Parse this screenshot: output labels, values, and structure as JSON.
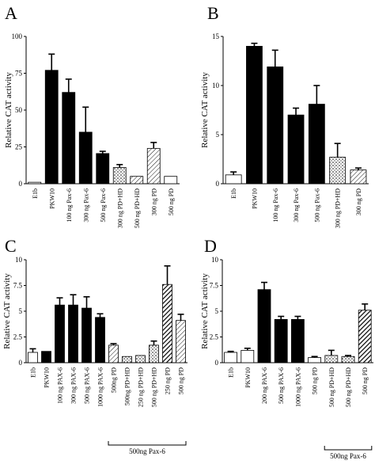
{
  "figure": {
    "panels": [
      "A",
      "B",
      "C",
      "D"
    ]
  },
  "chart_data": [
    {
      "panel": "A",
      "type": "bar",
      "ylabel": "Relative CAT activity",
      "ylim": [
        0,
        100
      ],
      "yticks": [
        0,
        25,
        50,
        75,
        100
      ],
      "categories": [
        "E1b",
        "PKW10",
        "100 ng Pax-6",
        "300 ng Pax-6",
        "500 ng Pax-6",
        "300 ng PD+HD",
        "500 ng PD+HD",
        "300 ng PD",
        "500 ng PD"
      ],
      "values": [
        1,
        77,
        62,
        35,
        20.5,
        11,
        5,
        24,
        5
      ],
      "errors": [
        0,
        11,
        9,
        17,
        1.5,
        2,
        0,
        4,
        0
      ],
      "fills": [
        "white",
        "black",
        "black",
        "black",
        "black",
        "dots",
        "lines",
        "lines",
        "white"
      ]
    },
    {
      "panel": "B",
      "type": "bar",
      "ylabel": "Relative CAT activity",
      "ylim": [
        0,
        15
      ],
      "yticks": [
        0,
        5,
        10,
        15
      ],
      "categories": [
        "E1b",
        "PKW10",
        "100 ng Pax-6",
        "300 ng Pax-6",
        "500 ng Pax-6",
        "300 ng PD+HD",
        "300 ng PD"
      ],
      "values": [
        0.9,
        14,
        11.9,
        7,
        8.1,
        2.7,
        1.4
      ],
      "errors": [
        0.3,
        0.3,
        1.7,
        0.7,
        1.9,
        1.4,
        0.2
      ],
      "fills": [
        "white",
        "black",
        "black",
        "black",
        "black",
        "dots",
        "lines"
      ]
    },
    {
      "panel": "C",
      "type": "bar",
      "ylabel": "Relative CAT activity",
      "ylim": [
        0,
        10
      ],
      "yticks": [
        0,
        2.5,
        5,
        7.5,
        10
      ],
      "categories": [
        "E1b",
        "PKW10",
        "100 ng PAX-6",
        "300 ng PAX-6",
        "500 ng PAX-6",
        "1000 ng PAX-6",
        "500ng PD",
        "500ng PD+HD",
        "250 ng PD+HD",
        "500 ng PD+HD",
        "250 ng PD",
        "500 ng PD"
      ],
      "values": [
        1,
        1.1,
        5.6,
        5.6,
        5.3,
        4.4,
        1.7,
        0.6,
        0.7,
        1.7,
        7.6,
        4.1
      ],
      "errors": [
        0.35,
        0,
        0.7,
        1,
        1.1,
        0.35,
        0.15,
        0,
        0,
        0.4,
        1.8,
        0.6
      ],
      "fills": [
        "white",
        "black",
        "black",
        "black",
        "black",
        "black",
        "lines",
        "dots",
        "dots",
        "dots",
        "hatch",
        "lines"
      ],
      "bracket_label": "500ng Pax-6"
    },
    {
      "panel": "D",
      "type": "bar",
      "ylabel": "Relative CAT activity",
      "ylim": [
        0,
        10
      ],
      "yticks": [
        0,
        2.5,
        5,
        7.5,
        10
      ],
      "categories": [
        "E1b",
        "PKW10",
        "200 ng PAX-6",
        "500 ng PAX-6",
        "1000 ng PAX-6",
        "500 ng PD",
        "500 ng PD+HD",
        "500 ng PD+HD",
        "500 ng PD"
      ],
      "values": [
        1,
        1.2,
        7.1,
        4.2,
        4.2,
        0.5,
        0.7,
        0.6,
        5.1
      ],
      "errors": [
        0.1,
        0.2,
        0.7,
        0.3,
        0.3,
        0.1,
        0.5,
        0.1,
        0.6
      ],
      "fills": [
        "white",
        "white",
        "black",
        "black",
        "black",
        "white",
        "dots",
        "dots",
        "hatch"
      ],
      "bracket_label": "500ng Pax-6"
    }
  ]
}
